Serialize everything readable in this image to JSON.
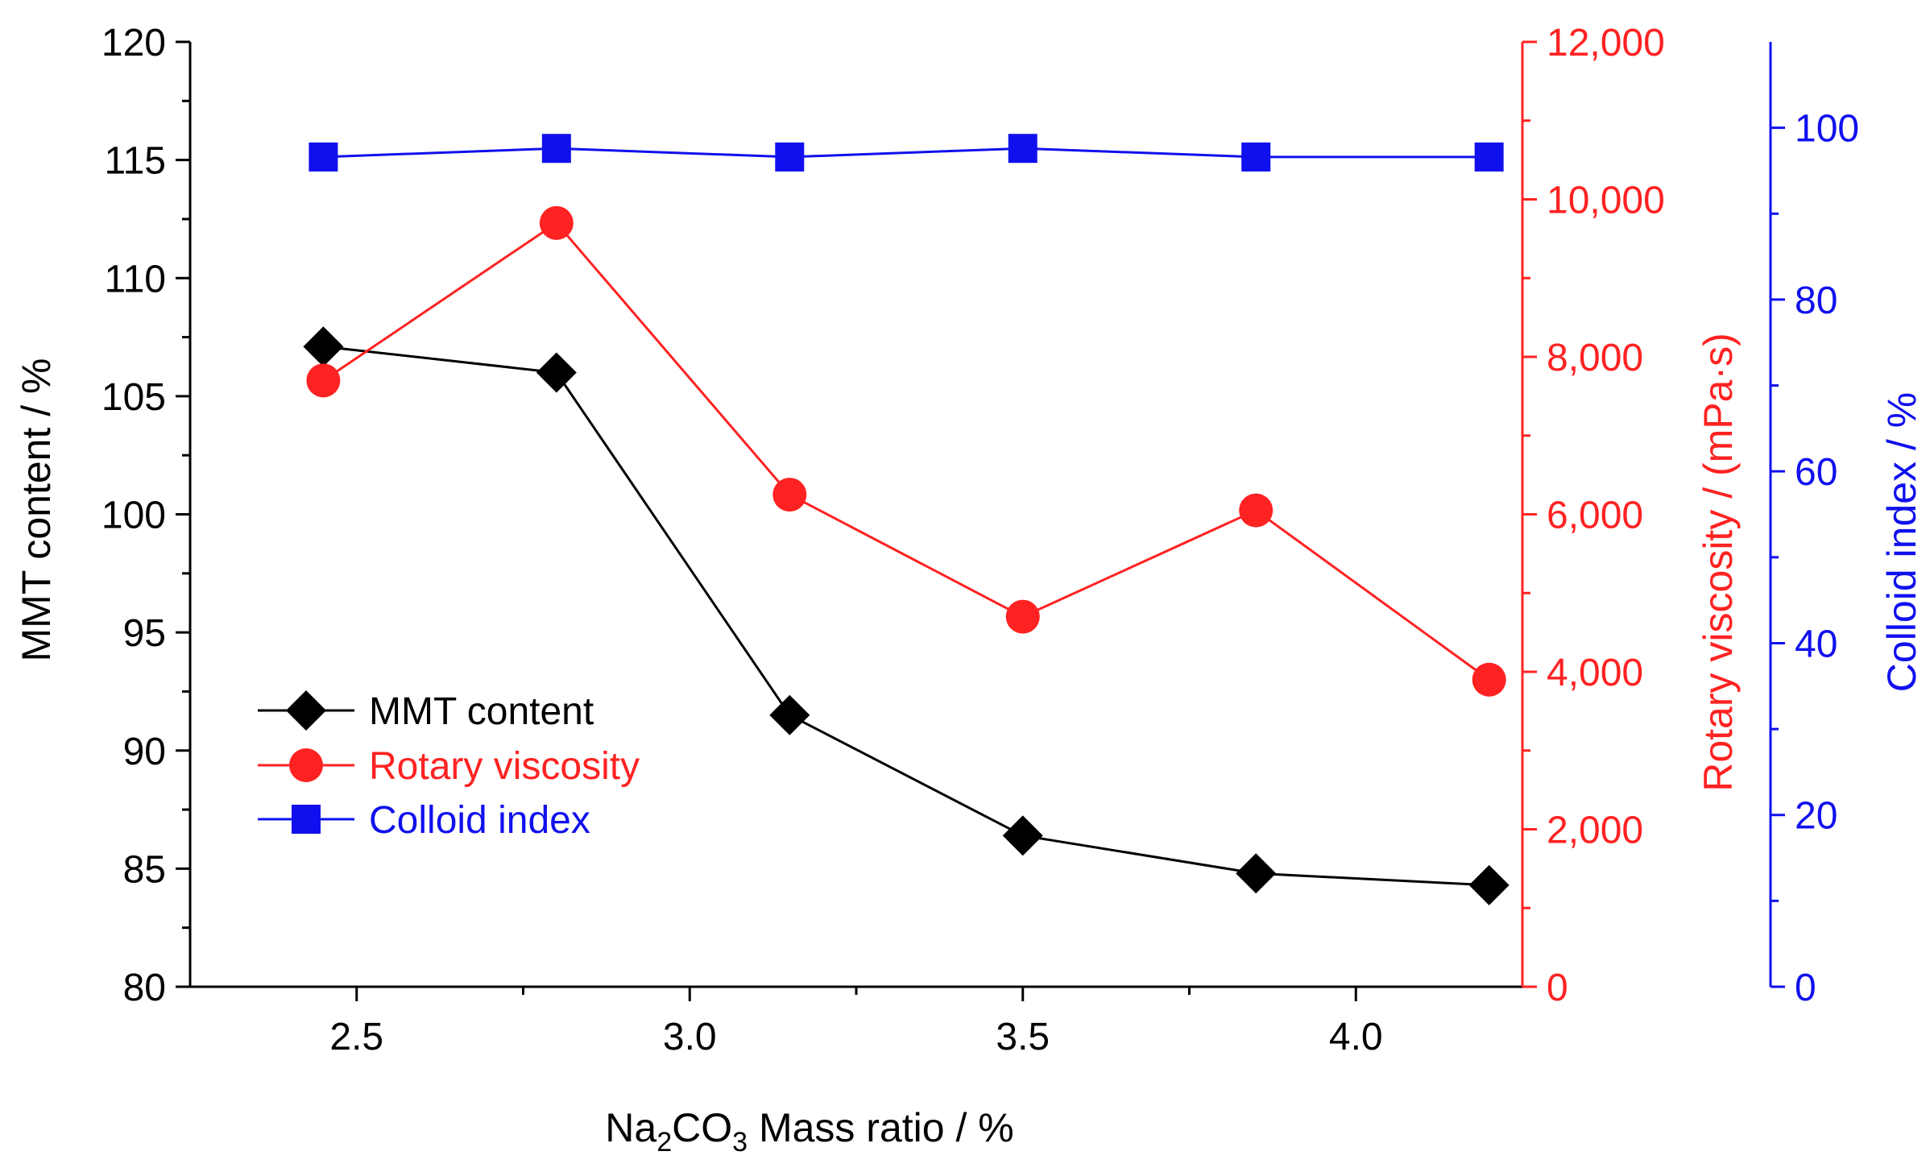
{
  "chart_data": {
    "type": "line",
    "x": [
      2.45,
      2.8,
      3.15,
      3.5,
      3.85,
      4.2
    ],
    "xlabel": {
      "pre": "Na",
      "sub1": "2",
      "mid": "CO",
      "sub2": "3",
      "post": " Mass ratio / %"
    },
    "xlim": [
      2.25,
      4.25
    ],
    "xticks": [
      "2.5",
      "3.0",
      "3.5",
      "4.0"
    ],
    "axes": {
      "left": {
        "label": "MMT content / %",
        "ylim": [
          80,
          120
        ],
        "ticks": [
          "80",
          "85",
          "90",
          "95",
          "100",
          "105",
          "110",
          "115",
          "120"
        ],
        "color": "#000000"
      },
      "right1": {
        "label": "Rotary viscosity  / (mPa·s)",
        "ylim": [
          0,
          12000
        ],
        "ticks": [
          "0",
          "2,000",
          "4,000",
          "6,000",
          "8,000",
          "10,000",
          "12,000"
        ],
        "color": "#ff2222"
      },
      "right2": {
        "label": "Colloid index  / %",
        "ylim": [
          0,
          110
        ],
        "ticks": [
          "0",
          "20",
          "40",
          "60",
          "80",
          "100"
        ],
        "color": "#1010ee"
      }
    },
    "series": [
      {
        "name": "MMT content",
        "axis": "left",
        "color": "#000000",
        "marker": "diamond",
        "values": [
          107.1,
          106.0,
          91.5,
          86.4,
          84.8,
          84.3
        ]
      },
      {
        "name": "Rotary viscosity",
        "axis": "right1",
        "color": "#ff2222",
        "marker": "circle",
        "values": [
          7700,
          9700,
          6250,
          4700,
          6050,
          3900
        ]
      },
      {
        "name": "Colloid index",
        "axis": "right2",
        "color": "#1010ee",
        "marker": "square",
        "values": [
          96.6,
          97.6,
          96.6,
          97.6,
          96.6,
          96.6
        ]
      }
    ],
    "legend_position": "bottom-left",
    "grid": false
  }
}
